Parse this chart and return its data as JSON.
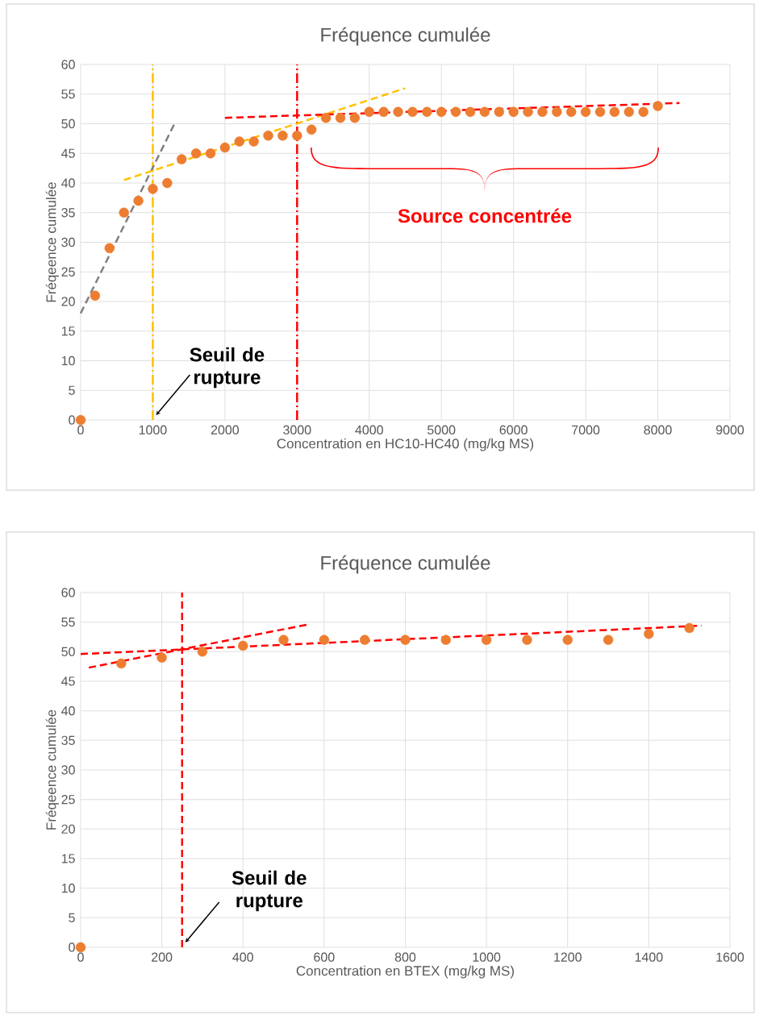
{
  "chart_data": [
    {
      "type": "scatter",
      "title": "Fréquence cumulée",
      "xlabel": "Concentration en HC10-HC40 (mg/kg MS)",
      "ylabel": "Fréqeence cumulée",
      "xlim": [
        0,
        9000
      ],
      "ylim": [
        0,
        60
      ],
      "xticks": [
        0,
        1000,
        2000,
        3000,
        4000,
        5000,
        6000,
        7000,
        8000,
        9000
      ],
      "yticks": [
        0,
        5,
        10,
        15,
        20,
        25,
        30,
        35,
        40,
        45,
        50,
        55,
        60
      ],
      "grid": true,
      "series": [
        {
          "marker": "circle",
          "color": "#ed7d31",
          "x": [
            0,
            200,
            400,
            600,
            800,
            1000,
            1200,
            1400,
            1600,
            1800,
            2000,
            2200,
            2400,
            2600,
            2800,
            3000,
            3200,
            3400,
            3600,
            3800,
            4000,
            4200,
            4400,
            4600,
            4800,
            5000,
            5200,
            5400,
            5600,
            5800,
            6000,
            6200,
            6400,
            6600,
            6800,
            7000,
            7200,
            7400,
            7600,
            7800,
            8000
          ],
          "values": [
            0,
            21,
            29,
            35,
            37,
            39,
            40,
            44,
            45,
            45,
            46,
            47,
            47,
            48,
            48,
            48,
            49,
            51,
            51,
            51,
            52,
            52,
            52,
            52,
            52,
            52,
            52,
            52,
            52,
            52,
            52,
            52,
            52,
            52,
            52,
            52,
            52,
            52,
            52,
            52,
            53
          ]
        },
        {
          "type": "line",
          "line_style": "dashed",
          "color": "#808080",
          "x": [
            0,
            1300
          ],
          "values": [
            18,
            50
          ]
        },
        {
          "type": "line",
          "line_style": "dashed",
          "color": "#ffc000",
          "x": [
            600,
            4500
          ],
          "values": [
            40.5,
            56
          ]
        },
        {
          "type": "line",
          "line_style": "dashed",
          "color": "#ff0000",
          "x": [
            2000,
            8300
          ],
          "values": [
            51,
            53.5
          ]
        }
      ],
      "ref_lines": [
        {
          "axis": "x",
          "value": 1000,
          "color": "#ffc000",
          "line_style": "dashdot"
        },
        {
          "axis": "x",
          "value": 3000,
          "color": "#ff0000",
          "line_style": "dashdot"
        }
      ],
      "annotations": [
        "Seuil de rupture",
        "Source concentrée"
      ]
    },
    {
      "type": "scatter",
      "title": "Fréquence cumulée",
      "xlabel": "Concentration en BTEX (mg/kg MS)",
      "ylabel": "Fréqeence cumulée",
      "xlim": [
        0,
        1600
      ],
      "ylim": [
        0,
        60
      ],
      "xticks": [
        0,
        200,
        400,
        600,
        800,
        1000,
        1200,
        1400,
        1600
      ],
      "yticks": [
        0,
        5,
        10,
        15,
        20,
        25,
        30,
        35,
        40,
        45,
        50,
        55,
        60
      ],
      "grid": true,
      "series": [
        {
          "marker": "circle",
          "color": "#ed7d31",
          "x": [
            0,
            100,
            200,
            300,
            400,
            500,
            600,
            700,
            800,
            900,
            1000,
            1100,
            1200,
            1300,
            1400,
            1500
          ],
          "values": [
            0,
            48,
            49,
            50,
            51,
            52,
            52,
            52,
            52,
            52,
            52,
            52,
            52,
            52,
            53,
            54
          ]
        },
        {
          "type": "line",
          "line_style": "dashed",
          "color": "#ff0000",
          "x": [
            0,
            1530
          ],
          "values": [
            49.6,
            54.4
          ]
        },
        {
          "type": "line",
          "line_style": "dashed",
          "color": "#ff0000",
          "x": [
            20,
            560
          ],
          "values": [
            47.3,
            54.6
          ]
        }
      ],
      "ref_lines": [
        {
          "axis": "x",
          "value": 250,
          "color": "#ff0000",
          "line_style": "dashed"
        }
      ],
      "annotations": [
        "Seuil de rupture"
      ]
    }
  ]
}
